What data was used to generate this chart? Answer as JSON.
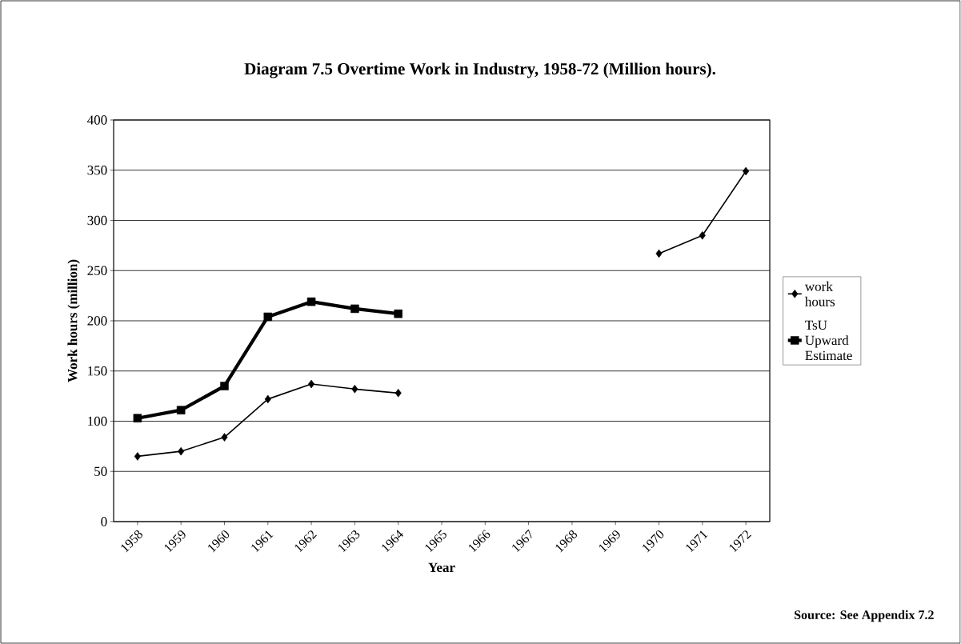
{
  "chart_data": {
    "type": "line",
    "title": "Diagram 7.5 Overtime Work in Industry, 1958-72 (Million hours).",
    "xlabel": "Year",
    "ylabel": "Work hours (million)",
    "categories": [
      "1958",
      "1959",
      "1960",
      "1961",
      "1962",
      "1963",
      "1964",
      "1965",
      "1966",
      "1967",
      "1968",
      "1969",
      "1970",
      "1971",
      "1972"
    ],
    "series": [
      {
        "name": "work hours",
        "color": "#000000",
        "marker": "diamond",
        "values": [
          65,
          70,
          84,
          122,
          137,
          132,
          128,
          null,
          null,
          null,
          null,
          null,
          267,
          285,
          349
        ]
      },
      {
        "name": "TsU Upward Estimate",
        "color": "#000000",
        "marker": "square",
        "values": [
          103,
          111,
          135,
          204,
          219,
          212,
          207,
          null,
          null,
          null,
          null,
          null,
          null,
          null,
          null
        ]
      }
    ],
    "ylim": [
      0,
      400
    ],
    "yticks": [
      0,
      50,
      100,
      150,
      200,
      250,
      300,
      350,
      400
    ],
    "grid": "y",
    "legend": "right",
    "annotations": [
      "Source: See Appendix 7.2"
    ]
  }
}
